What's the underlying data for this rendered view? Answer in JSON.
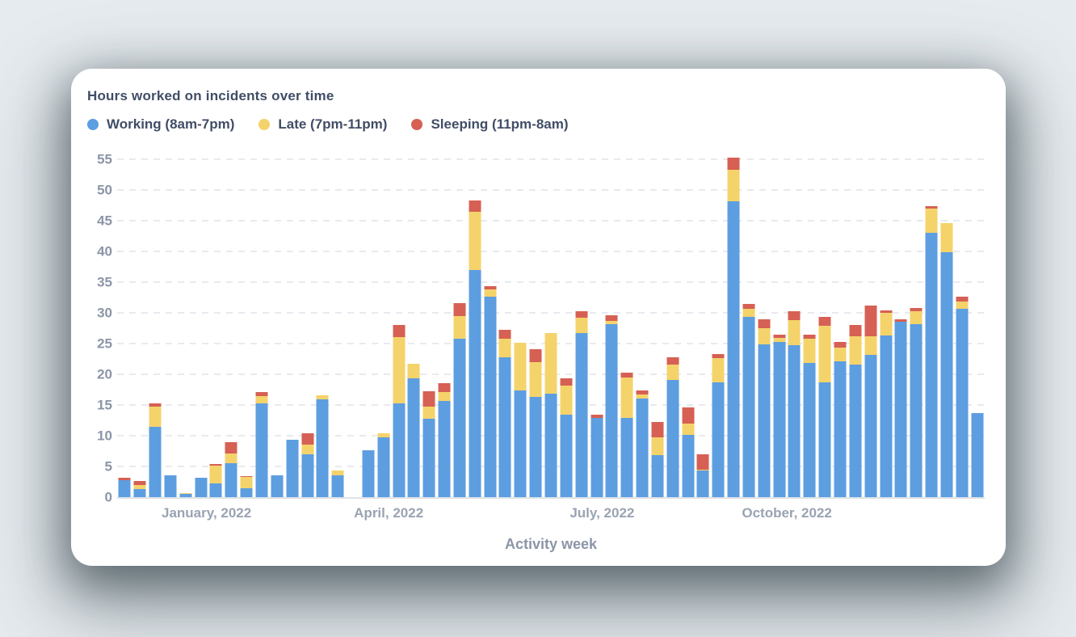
{
  "card": {
    "title": "Hours worked on incidents over time"
  },
  "legend": [
    {
      "label": "Working (8am-7pm)",
      "color": "#5d9ee0"
    },
    {
      "label": "Late (7pm-11pm)",
      "color": "#f5d36b"
    },
    {
      "label": "Sleeping (11pm-8am)",
      "color": "#d66054"
    }
  ],
  "chart_data": {
    "type": "bar",
    "stacked": true,
    "title": "Hours worked on incidents over time",
    "xlabel": "Activity week",
    "ylabel": "",
    "ylim": [
      0,
      55
    ],
    "yticks": [
      0,
      5,
      10,
      15,
      20,
      25,
      30,
      35,
      40,
      45,
      50,
      55
    ],
    "grid": true,
    "grid_style": "dashed",
    "legend_position": "top",
    "x_unit": "week",
    "x_month_labels": [
      {
        "label": "January, 2022",
        "pos": 0.103
      },
      {
        "label": "April, 2022",
        "pos": 0.313
      },
      {
        "label": "July, 2022",
        "pos": 0.559
      },
      {
        "label": "October, 2022",
        "pos": 0.772
      }
    ],
    "series": [
      {
        "name": "Working (8am-7pm)",
        "color": "#5d9ee0",
        "values": [
          2.8,
          1.3,
          11.4,
          3.6,
          0.5,
          3.2,
          2.3,
          5.5,
          1.5,
          15.3,
          3.5,
          9.4,
          7.0,
          15.9,
          3.5,
          0,
          7.6,
          9.8,
          15.2,
          19.4,
          12.8,
          15.6,
          25.8,
          37.0,
          32.6,
          22.8,
          17.3,
          16.3,
          16.9,
          13.4,
          26.7,
          12.9,
          28.2,
          12.9,
          16.1,
          6.9,
          19.1,
          10.1,
          4.3,
          18.7,
          48.2,
          29.4,
          24.9,
          25.3,
          24.7,
          21.9,
          18.7,
          22.1,
          21.6,
          23.1,
          26.3,
          28.6,
          28.1,
          43.0,
          39.8,
          30.6,
          13.7
        ]
      },
      {
        "name": "Late (7pm-11pm)",
        "color": "#f5d36b",
        "values": [
          0,
          0.7,
          3.3,
          0,
          0.2,
          0,
          2.8,
          1.6,
          1.8,
          1.2,
          0,
          0,
          1.6,
          0.7,
          0.9,
          0,
          0,
          0.6,
          10.8,
          2.3,
          1.9,
          1.5,
          3.7,
          9.5,
          1.2,
          3.0,
          7.8,
          5.7,
          9.8,
          4.8,
          2.5,
          0,
          0.5,
          6.6,
          0.6,
          2.8,
          2.5,
          1.9,
          0.2,
          3.9,
          5.1,
          1.2,
          2.6,
          0.6,
          4.1,
          3.9,
          9.2,
          2.3,
          4.6,
          3.1,
          3.7,
          0,
          2.1,
          3.9,
          4.8,
          1.3,
          0
        ]
      },
      {
        "name": "Sleeping (11pm-8am)",
        "color": "#d66054",
        "values": [
          0.3,
          0.6,
          0.5,
          0,
          0,
          0,
          0.3,
          1.8,
          0.1,
          0.6,
          0,
          0,
          1.8,
          0,
          0,
          0,
          0,
          0,
          2.0,
          0,
          2.6,
          1.5,
          2.1,
          1.8,
          0.5,
          1.4,
          0,
          2.1,
          0,
          1.1,
          1.0,
          0.5,
          0.9,
          0.8,
          0.7,
          2.5,
          1.2,
          2.6,
          2.5,
          0.7,
          1.9,
          0.8,
          1.4,
          0.6,
          1.5,
          0.7,
          1.5,
          0.8,
          1.8,
          5.0,
          0.4,
          0.4,
          0.6,
          0.5,
          0,
          0.7,
          0
        ]
      }
    ]
  }
}
